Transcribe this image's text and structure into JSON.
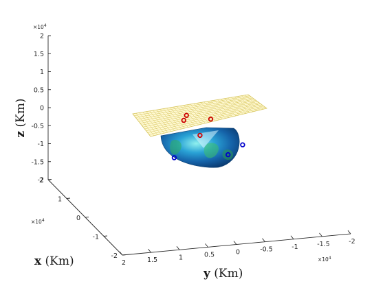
{
  "chart_data": {
    "type": "scatter",
    "title": "",
    "axes": {
      "x": {
        "label_var": "x",
        "label_unit": "(Km)",
        "ticks": [
          "2",
          "1",
          "0",
          "-1",
          "-2"
        ],
        "exponent": "×10",
        "exponent_power": "4",
        "range": [
          -20000,
          20000
        ]
      },
      "y": {
        "label_var": "y",
        "label_unit": "(Km)",
        "ticks": [
          "2",
          "1.5",
          "1",
          "0.5",
          "0",
          "-0.5",
          "-1",
          "-1.5",
          "-2"
        ],
        "exponent": "×10",
        "exponent_power": "4",
        "range": [
          -20000,
          20000
        ]
      },
      "z": {
        "label_var": "z",
        "label_unit": "(Km)",
        "ticks": [
          "2",
          "1.5",
          "1",
          "0.5",
          "0",
          "-0.5",
          "-1",
          "-1.5",
          "-2"
        ],
        "exponent": "×10",
        "exponent_power": "4",
        "range": [
          -20000,
          20000
        ]
      }
    },
    "grid": false,
    "surfaces": [
      {
        "kind": "plane",
        "color": "#d6c45a",
        "fill": "#fff7c4"
      },
      {
        "kind": "sphere-earth",
        "color": "#1f72b8"
      }
    ],
    "series": [
      {
        "marker": "circle",
        "color": "#cc0000",
        "points_projected_note": "above plane"
      },
      {
        "marker": "circle",
        "color": "#0000cc",
        "points_projected_note": "below plane"
      }
    ],
    "points": {
      "red": [
        [
          -0.3,
          0.9,
          0.1
        ],
        [
          0.3,
          0.6,
          0.25
        ],
        [
          1.4,
          -0.7,
          0.3
        ],
        [
          -1.0,
          0.5,
          -0.4
        ]
      ],
      "blue": [
        [
          0.8,
          -1.3,
          -0.6
        ],
        [
          -0.4,
          1.4,
          -1.1
        ],
        [
          -1.2,
          -0.5,
          -1.3
        ]
      ]
    }
  }
}
